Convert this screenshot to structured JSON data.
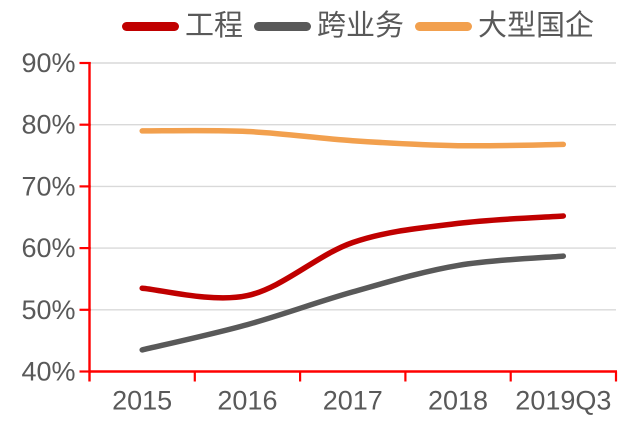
{
  "legend": {
    "items": [
      {
        "label": "工程",
        "color": "#C00000"
      },
      {
        "label": "跨业务",
        "color": "#595959"
      },
      {
        "label": "大型国企",
        "color": "#F2A04E"
      }
    ]
  },
  "chart_data": {
    "type": "line",
    "title": "",
    "categories": [
      "2015",
      "2016",
      "2017",
      "2018",
      "2019Q3"
    ],
    "series": [
      {
        "name": "工程",
        "color": "#C00000",
        "values": [
          53.5,
          52.3,
          60.9,
          64.0,
          65.2
        ]
      },
      {
        "name": "跨业务",
        "color": "#595959",
        "values": [
          43.5,
          47.6,
          52.9,
          57.2,
          58.7
        ]
      },
      {
        "name": "大型国企",
        "color": "#F2A04E",
        "values": [
          79.0,
          78.9,
          77.4,
          76.6,
          76.8
        ]
      }
    ],
    "y_axis": {
      "min": 40,
      "max": 90,
      "step": 10,
      "tick_labels": [
        "40%",
        "50%",
        "60%",
        "70%",
        "80%",
        "90%"
      ]
    },
    "x_axis": {
      "tick_labels": [
        "2015",
        "2016",
        "2017",
        "2018",
        "2019Q3"
      ]
    },
    "smooth": true,
    "grid": "horizontal",
    "legend_position": "top",
    "axis_color": "#FF0000",
    "gridline_color": "#D9D9D9",
    "label_color": "#595959",
    "background_color": "#FFFFFF"
  }
}
